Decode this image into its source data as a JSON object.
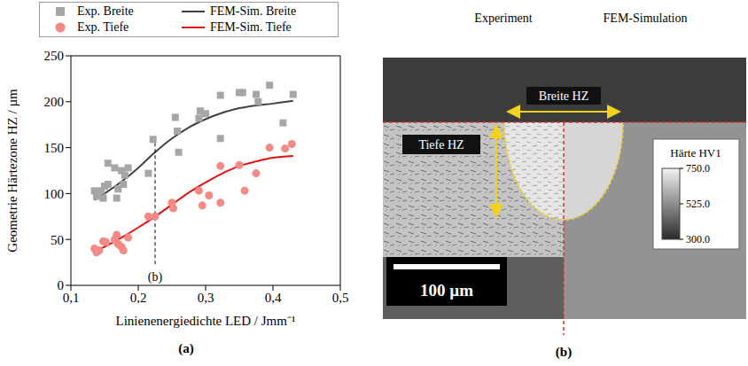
{
  "chart_data": {
    "type": "scatter",
    "caption": "(a)",
    "x_label": "Linienenergiedichte LED / Jmm⁻¹",
    "y_label": "Geometrie Härtezone HZ / µm",
    "xlim": [
      0.1,
      0.5
    ],
    "xticks": [
      {
        "value": 0.1,
        "label": "0,1"
      },
      {
        "value": 0.2,
        "label": "0,2"
      },
      {
        "value": 0.3,
        "label": "0,3"
      },
      {
        "value": 0.4,
        "label": "0,4"
      },
      {
        "value": 0.5,
        "label": "0,5"
      }
    ],
    "ylim": [
      0,
      250
    ],
    "yticks": [
      0,
      50,
      100,
      150,
      200,
      250
    ],
    "grid": false,
    "legend": "top",
    "series": [
      {
        "name": "Exp. Breite",
        "type": "scatter",
        "marker": "square",
        "color": "#a6a6a6",
        "x": [
          0.135,
          0.138,
          0.14,
          0.145,
          0.148,
          0.15,
          0.155,
          0.155,
          0.165,
          0.168,
          0.17,
          0.175,
          0.178,
          0.18,
          0.185,
          0.215,
          0.222,
          0.255,
          0.258,
          0.26,
          0.29,
          0.292,
          0.3,
          0.322,
          0.322,
          0.35,
          0.355,
          0.375,
          0.378,
          0.395,
          0.415,
          0.43
        ],
        "values": [
          103,
          97,
          100,
          103,
          95,
          108,
          133,
          110,
          128,
          95,
          105,
          125,
          110,
          120,
          128,
          122,
          159,
          183,
          168,
          145,
          182,
          190,
          187,
          160,
          207,
          210,
          210,
          208,
          200,
          218,
          177,
          208
        ]
      },
      {
        "name": "FEM-Sim. Breite",
        "type": "line",
        "line_style": "solid",
        "color": "#404040",
        "x": [
          0.135,
          0.15,
          0.175,
          0.2,
          0.225,
          0.25,
          0.275,
          0.3,
          0.325,
          0.35,
          0.375,
          0.4,
          0.43
        ],
        "values": [
          93,
          100,
          113,
          128,
          145,
          160,
          172,
          181,
          188,
          193,
          196,
          198,
          201
        ]
      },
      {
        "name": "Exp. Tiefe",
        "type": "scatter",
        "marker": "circle",
        "color": "#f48a86",
        "x": [
          0.135,
          0.138,
          0.142,
          0.148,
          0.152,
          0.165,
          0.168,
          0.17,
          0.175,
          0.178,
          0.185,
          0.215,
          0.225,
          0.25,
          0.252,
          0.29,
          0.295,
          0.305,
          0.322,
          0.322,
          0.35,
          0.358,
          0.375,
          0.395,
          0.418,
          0.428
        ],
        "values": [
          40,
          36,
          38,
          48,
          47,
          50,
          55,
          45,
          42,
          38,
          52,
          75,
          75,
          90,
          84,
          103,
          87,
          98,
          130,
          90,
          131,
          103,
          122,
          150,
          149,
          154
        ]
      },
      {
        "name": "FEM-Sim. Tiefe",
        "type": "line",
        "line_style": "solid",
        "color": "#e0120f",
        "x": [
          0.135,
          0.15,
          0.175,
          0.2,
          0.225,
          0.25,
          0.275,
          0.3,
          0.325,
          0.35,
          0.375,
          0.4,
          0.43
        ],
        "values": [
          37,
          42,
          52,
          63,
          75,
          88,
          101,
          112,
          122,
          130,
          135,
          139,
          141
        ]
      }
    ],
    "annotations": [
      {
        "text": "(b)",
        "x": 0.225,
        "y": 10,
        "line_from": 23,
        "line_to": 165,
        "line_style": "dashed"
      }
    ]
  },
  "panel_b": {
    "caption": "(b)",
    "headers": [
      "Experiment",
      "FEM-Simulation"
    ],
    "width_label": "Breite HZ",
    "depth_label": "Tiefe HZ",
    "scale_bar": "100 µm",
    "colorbar": {
      "title": "Härte HV1",
      "range": [
        300,
        750
      ],
      "ticks": [
        {
          "value": 750,
          "label": "750.0"
        },
        {
          "value": 525,
          "label": "525.0"
        },
        {
          "value": 300,
          "label": "300.0"
        }
      ]
    }
  }
}
